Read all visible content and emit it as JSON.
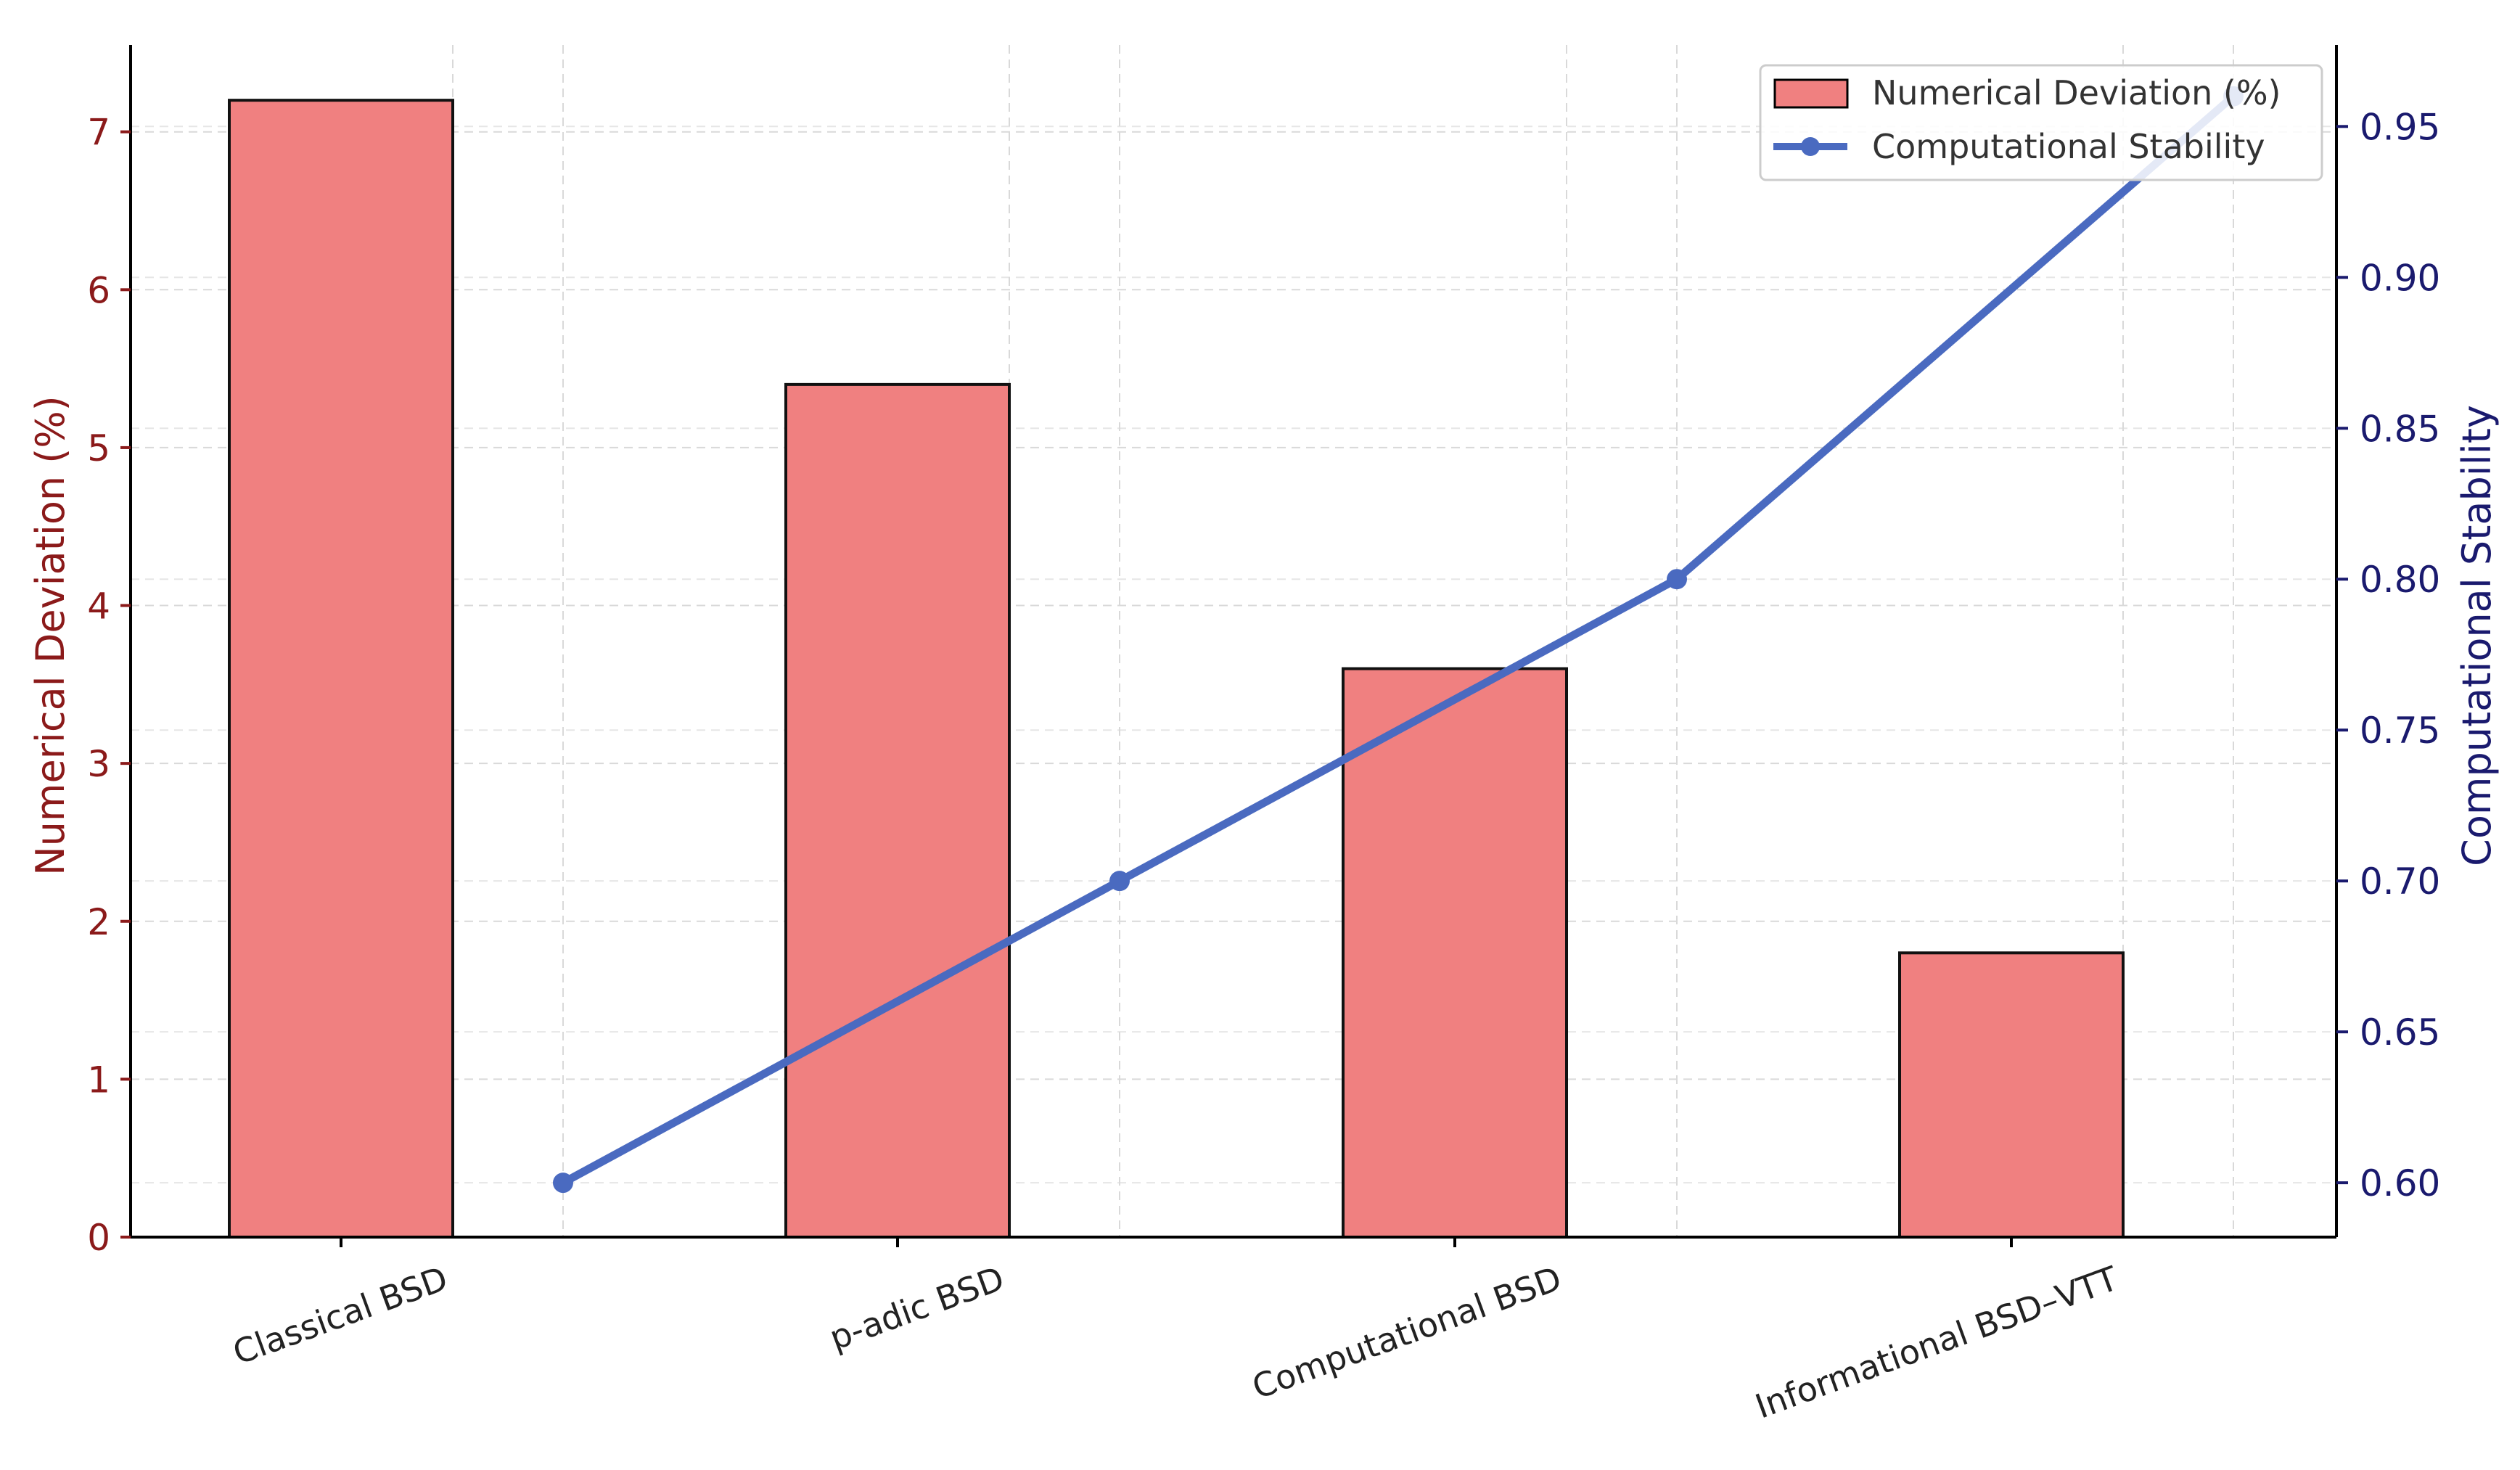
{
  "chart_data": {
    "type": "bar",
    "categories": [
      "Classical BSD",
      "p-adic BSD",
      "Computational BSD",
      "Informational BSD–VTT"
    ],
    "series": [
      {
        "name": "Numerical Deviation (%)",
        "type": "bar",
        "axis": "left",
        "values": [
          7.2,
          5.4,
          3.6,
          1.8
        ],
        "color": "#f08080"
      },
      {
        "name": "Computational Stability",
        "type": "line",
        "axis": "right",
        "values": [
          0.6,
          0.7,
          0.8,
          0.96
        ],
        "color": "#4a6ac0"
      }
    ],
    "ylabel_left": "Numerical Deviation (%)",
    "ylabel_right": "Computational Stability",
    "ylim_left": [
      0,
      7.55
    ],
    "ylim_right": [
      0.582,
      0.977
    ],
    "yticks_left": [
      "0",
      "1",
      "2",
      "3",
      "4",
      "5",
      "6",
      "7"
    ],
    "yticks_right": [
      "0.60",
      "0.65",
      "0.70",
      "0.75",
      "0.80",
      "0.85",
      "0.90",
      "0.95"
    ],
    "left_axis_color": "#8b1a1a",
    "right_axis_color": "#1a1a6e",
    "grid": true,
    "legend_position": "top-right"
  }
}
